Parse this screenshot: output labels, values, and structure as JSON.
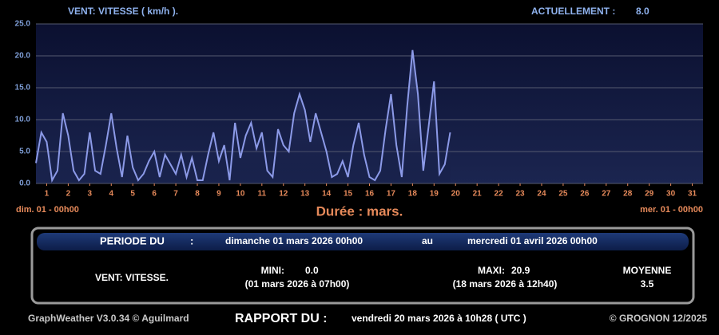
{
  "chart_data": {
    "type": "line",
    "title": "VENT: VITESSE ( km/h ).",
    "x": [
      1,
      1.25,
      1.5,
      1.75,
      2,
      2.25,
      2.5,
      2.75,
      3,
      3.25,
      3.5,
      3.75,
      4,
      4.25,
      4.5,
      4.75,
      5,
      5.25,
      5.5,
      5.75,
      6,
      6.25,
      6.5,
      6.75,
      7,
      7.25,
      7.5,
      7.75,
      8,
      8.25,
      8.5,
      8.75,
      9,
      9.25,
      9.5,
      9.75,
      10,
      10.25,
      10.5,
      10.75,
      11,
      11.25,
      11.5,
      11.75,
      12,
      12.25,
      12.5,
      12.75,
      13,
      13.25,
      13.5,
      13.75,
      14,
      14.25,
      14.5,
      14.75,
      15,
      15.25,
      15.5,
      15.75,
      16,
      16.25,
      16.5,
      16.75,
      17,
      17.25,
      17.5,
      17.75,
      18,
      18.25,
      18.5,
      18.75,
      19,
      19.25,
      19.5,
      19.75,
      20,
      20.25
    ],
    "series": [
      {
        "name": "VENT: VITESSE.",
        "color": "#8c9ae8",
        "values": [
          3.2,
          8.0,
          6.5,
          0.5,
          2.0,
          11.0,
          7.5,
          2.0,
          0.5,
          1.5,
          8.0,
          2.0,
          1.5,
          6.0,
          11.0,
          5.5,
          1.0,
          7.5,
          2.5,
          0.5,
          1.5,
          3.5,
          5.0,
          1.0,
          4.5,
          3.0,
          1.5,
          4.5,
          1.0,
          4.0,
          0.5,
          0.5,
          4.5,
          8.0,
          3.5,
          6.0,
          0.5,
          9.5,
          4.0,
          7.5,
          9.5,
          5.5,
          8.0,
          2.0,
          1.0,
          8.5,
          6.0,
          5.0,
          11.0,
          14.0,
          11.5,
          6.5,
          11.0,
          8.0,
          5.0,
          1.0,
          1.5,
          3.5,
          1.0,
          6.0,
          9.5,
          4.5,
          1.0,
          0.5,
          2.0,
          8.5,
          14.0,
          6.0,
          1.0,
          12.0,
          20.9,
          14.0,
          2.0,
          9.0,
          16.0,
          1.5,
          3.0,
          8.0
        ]
      }
    ],
    "xlim": [
      1,
      32
    ],
    "xticks": [
      {
        "value": 1.5,
        "label": "1"
      },
      {
        "value": 2.5,
        "label": "2"
      },
      {
        "value": 3.5,
        "label": "3"
      },
      {
        "value": 4.5,
        "label": "4"
      },
      {
        "value": 5.5,
        "label": "5"
      },
      {
        "value": 6.5,
        "label": "6"
      },
      {
        "value": 7.5,
        "label": "7"
      },
      {
        "value": 8.5,
        "label": "8"
      },
      {
        "value": 9.5,
        "label": "9"
      },
      {
        "value": 10.5,
        "label": "10"
      },
      {
        "value": 11.5,
        "label": "11"
      },
      {
        "value": 12.5,
        "label": "12"
      },
      {
        "value": 13.5,
        "label": "13"
      },
      {
        "value": 14.5,
        "label": "14"
      },
      {
        "value": 15.5,
        "label": "15"
      },
      {
        "value": 16.5,
        "label": "16"
      },
      {
        "value": 17.5,
        "label": "17"
      },
      {
        "value": 18.5,
        "label": "18"
      },
      {
        "value": 19.5,
        "label": "19"
      },
      {
        "value": 20.5,
        "label": "20"
      },
      {
        "value": 21.5,
        "label": "21"
      },
      {
        "value": 22.5,
        "label": "22"
      },
      {
        "value": 23.5,
        "label": "23"
      },
      {
        "value": 24.5,
        "label": "24"
      },
      {
        "value": 25.5,
        "label": "25"
      },
      {
        "value": 26.5,
        "label": "26"
      },
      {
        "value": 27.5,
        "label": "27"
      },
      {
        "value": 28.5,
        "label": "28"
      },
      {
        "value": 29.5,
        "label": "29"
      },
      {
        "value": 30.5,
        "label": "30"
      },
      {
        "value": 31.5,
        "label": "31"
      }
    ],
    "ylim": [
      0,
      25
    ],
    "yticks": [
      {
        "value": 0,
        "label": "0.0"
      },
      {
        "value": 5,
        "label": "5.0"
      },
      {
        "value": 10,
        "label": "10.0"
      },
      {
        "value": 15,
        "label": "15.0"
      },
      {
        "value": 20,
        "label": "20.0"
      },
      {
        "value": 25,
        "label": "25.0"
      }
    ],
    "grid": true,
    "x_start_label": "dim. 01 - 00h00",
    "x_end_label": "mer. 01 - 00h00",
    "x_title": "Durée : mars."
  },
  "header": {
    "current_label": "ACTUELLEMENT :",
    "current_value": "8.0"
  },
  "summary": {
    "period_label": "PERIODE DU",
    "period_sep": ":",
    "period_start": "dimanche 01 mars 2026 00h00",
    "period_to": "au",
    "period_end": "mercredi 01 avril 2026 00h00",
    "variable": "VENT: VITESSE.",
    "min_label": "MINI:",
    "min_value": "0.0",
    "min_date": "(01 mars 2026 à 07h00)",
    "max_label": "MAXI:",
    "max_value": "20.9",
    "max_date": "(18 mars 2026 à 12h40)",
    "mean_label": "MOYENNE",
    "mean_value": "3.5"
  },
  "footer": {
    "software": "GraphWeather V3.0.34 © Aguilmard",
    "report_label": "RAPPORT DU :",
    "report_date": "vendredi 20 mars 2026 à 10h28 ( UTC )",
    "copyright": "© GROGNON 12/2025"
  }
}
